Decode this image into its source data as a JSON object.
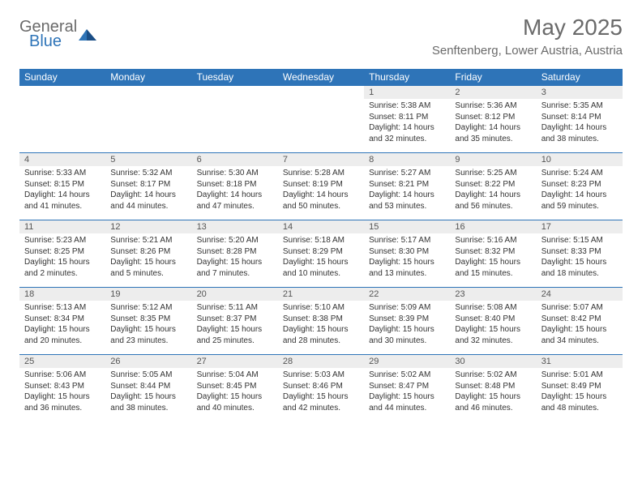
{
  "brand": {
    "part1": "General",
    "part2": "Blue"
  },
  "title": "May 2025",
  "location": "Senftenberg, Lower Austria, Austria",
  "day_headers": [
    "Sunday",
    "Monday",
    "Tuesday",
    "Wednesday",
    "Thursday",
    "Friday",
    "Saturday"
  ],
  "colors": {
    "header_bg": "#2e74b8",
    "header_text": "#ffffff",
    "daynum_bg": "#ededed",
    "row_border": "#2e74b8",
    "body_text": "#333333",
    "muted_text": "#6a6a6a"
  },
  "weeks": [
    {
      "nums": [
        "",
        "",
        "",
        "",
        "1",
        "2",
        "3"
      ],
      "cells": [
        null,
        null,
        null,
        null,
        {
          "sunrise": "Sunrise: 5:38 AM",
          "sunset": "Sunset: 8:11 PM",
          "dl1": "Daylight: 14 hours",
          "dl2": "and 32 minutes."
        },
        {
          "sunrise": "Sunrise: 5:36 AM",
          "sunset": "Sunset: 8:12 PM",
          "dl1": "Daylight: 14 hours",
          "dl2": "and 35 minutes."
        },
        {
          "sunrise": "Sunrise: 5:35 AM",
          "sunset": "Sunset: 8:14 PM",
          "dl1": "Daylight: 14 hours",
          "dl2": "and 38 minutes."
        }
      ]
    },
    {
      "nums": [
        "4",
        "5",
        "6",
        "7",
        "8",
        "9",
        "10"
      ],
      "cells": [
        {
          "sunrise": "Sunrise: 5:33 AM",
          "sunset": "Sunset: 8:15 PM",
          "dl1": "Daylight: 14 hours",
          "dl2": "and 41 minutes."
        },
        {
          "sunrise": "Sunrise: 5:32 AM",
          "sunset": "Sunset: 8:17 PM",
          "dl1": "Daylight: 14 hours",
          "dl2": "and 44 minutes."
        },
        {
          "sunrise": "Sunrise: 5:30 AM",
          "sunset": "Sunset: 8:18 PM",
          "dl1": "Daylight: 14 hours",
          "dl2": "and 47 minutes."
        },
        {
          "sunrise": "Sunrise: 5:28 AM",
          "sunset": "Sunset: 8:19 PM",
          "dl1": "Daylight: 14 hours",
          "dl2": "and 50 minutes."
        },
        {
          "sunrise": "Sunrise: 5:27 AM",
          "sunset": "Sunset: 8:21 PM",
          "dl1": "Daylight: 14 hours",
          "dl2": "and 53 minutes."
        },
        {
          "sunrise": "Sunrise: 5:25 AM",
          "sunset": "Sunset: 8:22 PM",
          "dl1": "Daylight: 14 hours",
          "dl2": "and 56 minutes."
        },
        {
          "sunrise": "Sunrise: 5:24 AM",
          "sunset": "Sunset: 8:23 PM",
          "dl1": "Daylight: 14 hours",
          "dl2": "and 59 minutes."
        }
      ]
    },
    {
      "nums": [
        "11",
        "12",
        "13",
        "14",
        "15",
        "16",
        "17"
      ],
      "cells": [
        {
          "sunrise": "Sunrise: 5:23 AM",
          "sunset": "Sunset: 8:25 PM",
          "dl1": "Daylight: 15 hours",
          "dl2": "and 2 minutes."
        },
        {
          "sunrise": "Sunrise: 5:21 AM",
          "sunset": "Sunset: 8:26 PM",
          "dl1": "Daylight: 15 hours",
          "dl2": "and 5 minutes."
        },
        {
          "sunrise": "Sunrise: 5:20 AM",
          "sunset": "Sunset: 8:28 PM",
          "dl1": "Daylight: 15 hours",
          "dl2": "and 7 minutes."
        },
        {
          "sunrise": "Sunrise: 5:18 AM",
          "sunset": "Sunset: 8:29 PM",
          "dl1": "Daylight: 15 hours",
          "dl2": "and 10 minutes."
        },
        {
          "sunrise": "Sunrise: 5:17 AM",
          "sunset": "Sunset: 8:30 PM",
          "dl1": "Daylight: 15 hours",
          "dl2": "and 13 minutes."
        },
        {
          "sunrise": "Sunrise: 5:16 AM",
          "sunset": "Sunset: 8:32 PM",
          "dl1": "Daylight: 15 hours",
          "dl2": "and 15 minutes."
        },
        {
          "sunrise": "Sunrise: 5:15 AM",
          "sunset": "Sunset: 8:33 PM",
          "dl1": "Daylight: 15 hours",
          "dl2": "and 18 minutes."
        }
      ]
    },
    {
      "nums": [
        "18",
        "19",
        "20",
        "21",
        "22",
        "23",
        "24"
      ],
      "cells": [
        {
          "sunrise": "Sunrise: 5:13 AM",
          "sunset": "Sunset: 8:34 PM",
          "dl1": "Daylight: 15 hours",
          "dl2": "and 20 minutes."
        },
        {
          "sunrise": "Sunrise: 5:12 AM",
          "sunset": "Sunset: 8:35 PM",
          "dl1": "Daylight: 15 hours",
          "dl2": "and 23 minutes."
        },
        {
          "sunrise": "Sunrise: 5:11 AM",
          "sunset": "Sunset: 8:37 PM",
          "dl1": "Daylight: 15 hours",
          "dl2": "and 25 minutes."
        },
        {
          "sunrise": "Sunrise: 5:10 AM",
          "sunset": "Sunset: 8:38 PM",
          "dl1": "Daylight: 15 hours",
          "dl2": "and 28 minutes."
        },
        {
          "sunrise": "Sunrise: 5:09 AM",
          "sunset": "Sunset: 8:39 PM",
          "dl1": "Daylight: 15 hours",
          "dl2": "and 30 minutes."
        },
        {
          "sunrise": "Sunrise: 5:08 AM",
          "sunset": "Sunset: 8:40 PM",
          "dl1": "Daylight: 15 hours",
          "dl2": "and 32 minutes."
        },
        {
          "sunrise": "Sunrise: 5:07 AM",
          "sunset": "Sunset: 8:42 PM",
          "dl1": "Daylight: 15 hours",
          "dl2": "and 34 minutes."
        }
      ]
    },
    {
      "nums": [
        "25",
        "26",
        "27",
        "28",
        "29",
        "30",
        "31"
      ],
      "cells": [
        {
          "sunrise": "Sunrise: 5:06 AM",
          "sunset": "Sunset: 8:43 PM",
          "dl1": "Daylight: 15 hours",
          "dl2": "and 36 minutes."
        },
        {
          "sunrise": "Sunrise: 5:05 AM",
          "sunset": "Sunset: 8:44 PM",
          "dl1": "Daylight: 15 hours",
          "dl2": "and 38 minutes."
        },
        {
          "sunrise": "Sunrise: 5:04 AM",
          "sunset": "Sunset: 8:45 PM",
          "dl1": "Daylight: 15 hours",
          "dl2": "and 40 minutes."
        },
        {
          "sunrise": "Sunrise: 5:03 AM",
          "sunset": "Sunset: 8:46 PM",
          "dl1": "Daylight: 15 hours",
          "dl2": "and 42 minutes."
        },
        {
          "sunrise": "Sunrise: 5:02 AM",
          "sunset": "Sunset: 8:47 PM",
          "dl1": "Daylight: 15 hours",
          "dl2": "and 44 minutes."
        },
        {
          "sunrise": "Sunrise: 5:02 AM",
          "sunset": "Sunset: 8:48 PM",
          "dl1": "Daylight: 15 hours",
          "dl2": "and 46 minutes."
        },
        {
          "sunrise": "Sunrise: 5:01 AM",
          "sunset": "Sunset: 8:49 PM",
          "dl1": "Daylight: 15 hours",
          "dl2": "and 48 minutes."
        }
      ]
    }
  ]
}
